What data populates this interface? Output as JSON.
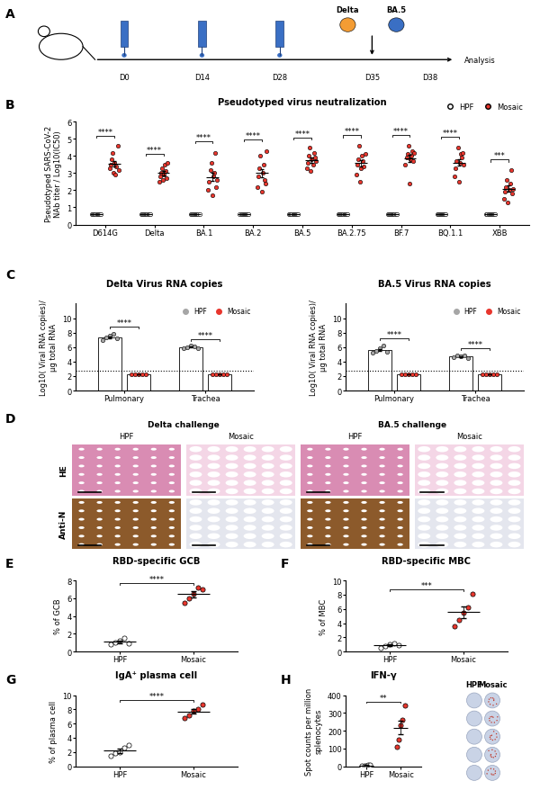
{
  "panel_labels": [
    "A",
    "B",
    "C",
    "D",
    "E",
    "F",
    "G",
    "H"
  ],
  "schedule": {
    "doses": [
      "D0",
      "D14",
      "D28"
    ],
    "challenge_day": "D35",
    "analysis_day": "D38",
    "viruses": [
      {
        "name": "Delta",
        "color": "#f39c34"
      },
      {
        "name": "BA.5",
        "color": "#3a6fc4"
      }
    ],
    "endpoint": "Analysis"
  },
  "chart_data": [
    {
      "type": "scatter",
      "title": "Pseudotyped virus neutralization",
      "ylabel": "Pseudotyped SARS-CoV-2\nNAb titer / Log10(IC50)",
      "categories": [
        "D614G",
        "Delta",
        "BA.1",
        "BA.2",
        "BA.5",
        "BA.2.75",
        "BF.7",
        "BQ.1.1",
        "XBB"
      ],
      "ylim": [
        0,
        6
      ],
      "yticks": [
        0,
        1,
        2,
        3,
        4,
        5,
        6
      ],
      "legend": "upper right",
      "significance": [
        "****",
        "****",
        "****",
        "****",
        "****",
        "****",
        "****",
        "****",
        "***"
      ],
      "series": [
        {
          "name": "HPF",
          "color": "#ffffff",
          "values": [
            [
              0.6,
              0.6,
              0.6,
              0.6,
              0.6,
              0.6,
              0.6,
              0.6,
              0.6,
              0.6
            ],
            [
              0.6,
              0.6,
              0.6,
              0.6,
              0.6,
              0.6,
              0.6,
              0.6,
              0.6,
              0.6
            ],
            [
              0.6,
              0.6,
              0.6,
              0.6,
              0.6,
              0.6,
              0.6,
              0.6,
              0.6,
              0.6
            ],
            [
              0.6,
              0.6,
              0.6,
              0.6,
              0.6,
              0.6,
              0.6,
              0.6,
              0.6,
              0.6
            ],
            [
              0.6,
              0.6,
              0.6,
              0.6,
              0.6,
              0.6,
              0.6,
              0.6,
              0.6,
              0.6
            ],
            [
              0.6,
              0.6,
              0.6,
              0.6,
              0.6,
              0.6,
              0.6,
              0.6,
              0.6,
              0.6
            ],
            [
              0.6,
              0.6,
              0.6,
              0.6,
              0.6,
              0.6,
              0.6,
              0.6,
              0.6,
              0.6
            ],
            [
              0.6,
              0.6,
              0.6,
              0.6,
              0.6,
              0.6,
              0.6,
              0.6,
              0.6,
              0.6
            ],
            [
              0.6,
              0.6,
              0.6,
              0.6,
              0.6,
              0.6,
              0.6,
              0.6,
              0.6,
              0.6
            ]
          ],
          "means": [
            0.6,
            0.6,
            0.6,
            0.6,
            0.6,
            0.6,
            0.6,
            0.6,
            0.6
          ],
          "errors": [
            0,
            0,
            0,
            0,
            0,
            0,
            0,
            0,
            0
          ]
        },
        {
          "name": "Mosaic",
          "color": "#e8362d",
          "values": [
            [
              3.3,
              3.5,
              3.8,
              4.2,
              3.0,
              3.6,
              2.9,
              3.4,
              4.6,
              3.2
            ],
            [
              2.5,
              2.8,
              3.0,
              3.3,
              2.6,
              2.9,
              3.5,
              3.1,
              2.7,
              3.6
            ],
            [
              2.0,
              2.5,
              3.2,
              3.6,
              1.7,
              2.8,
              3.0,
              4.2,
              2.2,
              2.6
            ],
            [
              2.2,
              2.8,
              3.3,
              4.0,
              1.9,
              3.0,
              3.5,
              2.6,
              2.4,
              4.3
            ],
            [
              3.3,
              3.6,
              4.0,
              4.5,
              3.1,
              3.8,
              3.5,
              4.2,
              3.9,
              3.7
            ],
            [
              2.9,
              3.5,
              3.8,
              4.6,
              2.5,
              3.3,
              4.0,
              3.7,
              3.4,
              4.1
            ],
            [
              3.5,
              3.9,
              4.1,
              4.6,
              2.4,
              3.8,
              4.0,
              4.3,
              3.7,
              4.2
            ],
            [
              2.8,
              3.3,
              3.7,
              4.5,
              2.5,
              3.6,
              4.1,
              3.9,
              4.2,
              3.5
            ],
            [
              1.5,
              1.9,
              2.2,
              2.6,
              1.3,
              2.0,
              2.4,
              3.2,
              1.8,
              2.1
            ]
          ],
          "means": [
            3.55,
            3.0,
            2.78,
            3.0,
            3.76,
            3.58,
            3.85,
            3.61,
            2.1
          ],
          "errors": [
            0.16,
            0.12,
            0.24,
            0.25,
            0.14,
            0.19,
            0.2,
            0.19,
            0.17
          ]
        }
      ]
    },
    {
      "type": "bar",
      "title": "Delta Virus RNA copies",
      "ylabel": "Log10( Viral RNA copies)/\nµg total RNA",
      "categories": [
        "Pulmonary",
        "Trachea"
      ],
      "ylim": [
        0,
        12
      ],
      "yticks": [
        0,
        2,
        4,
        6,
        8,
        10
      ],
      "reference_line": 2.8,
      "legend": "upper right",
      "significance": [
        "****",
        "****"
      ],
      "series": [
        {
          "name": "HPF",
          "color": "#a6a6a6",
          "values": [
            [
              7.0,
              7.3,
              7.6,
              7.8,
              7.2
            ],
            [
              5.8,
              6.0,
              6.2,
              6.1,
              5.9
            ]
          ],
          "means": [
            7.38,
            6.0
          ],
          "errors": [
            0.14,
            0.07
          ]
        },
        {
          "name": "Mosaic",
          "color": "#e8362d",
          "values": [
            [
              2.3,
              2.3,
              2.3,
              2.3,
              2.3
            ],
            [
              2.3,
              2.3,
              2.3,
              2.3,
              2.3
            ]
          ],
          "means": [
            2.3,
            2.3
          ],
          "errors": [
            0,
            0
          ]
        }
      ]
    },
    {
      "type": "bar",
      "title": "BA.5 Virus RNA copies",
      "ylabel": "Log10( Viral RNA copies)/\nµg total RNA",
      "categories": [
        "Pulmonary",
        "Trachea"
      ],
      "ylim": [
        0,
        12
      ],
      "yticks": [
        0,
        2,
        4,
        6,
        8,
        10
      ],
      "reference_line": 2.8,
      "legend": "upper right",
      "significance": [
        "****",
        "****"
      ],
      "series": [
        {
          "name": "HPF",
          "color": "#a6a6a6",
          "values": [
            [
              5.2,
              5.5,
              5.8,
              6.2,
              5.3
            ],
            [
              4.6,
              4.8,
              4.7,
              4.9,
              4.5
            ]
          ],
          "means": [
            5.6,
            4.7
          ],
          "errors": [
            0.18,
            0.07
          ]
        },
        {
          "name": "Mosaic",
          "color": "#e8362d",
          "values": [
            [
              2.3,
              2.3,
              2.3,
              2.3,
              2.3
            ],
            [
              2.3,
              2.3,
              2.3,
              2.3,
              2.3
            ]
          ],
          "means": [
            2.3,
            2.3
          ],
          "errors": [
            0,
            0
          ]
        }
      ]
    },
    {
      "type": "scatter",
      "title": "RBD-specific GCB",
      "ylabel": "% of GCB",
      "categories": [
        "HPF",
        "Mosaic"
      ],
      "colors": [
        "#ffffff",
        "#e8362d"
      ],
      "values": [
        [
          0.8,
          1.0,
          1.2,
          1.5,
          0.9
        ],
        [
          5.5,
          6.0,
          6.5,
          7.2,
          7.0
        ]
      ],
      "means": [
        1.08,
        6.44
      ],
      "errors": [
        0.12,
        0.32
      ],
      "ylim": [
        0,
        8
      ],
      "yticks": [
        0,
        2,
        4,
        6,
        8
      ],
      "significance": "****"
    },
    {
      "type": "scatter",
      "title": "RBD-specific MBC",
      "ylabel": "% of MBC",
      "categories": [
        "HPF",
        "Mosaic"
      ],
      "colors": [
        "#ffffff",
        "#e8362d"
      ],
      "values": [
        [
          0.5,
          0.8,
          1.0,
          1.2,
          0.9
        ],
        [
          3.5,
          4.5,
          5.5,
          6.2,
          8.1
        ]
      ],
      "means": [
        0.88,
        5.56
      ],
      "errors": [
        0.12,
        0.8
      ],
      "ylim": [
        0,
        10
      ],
      "yticks": [
        0,
        2,
        4,
        6,
        8,
        10
      ],
      "significance": "***"
    },
    {
      "type": "scatter",
      "title": "IgA⁺ plasma cell",
      "ylabel": "% of plasma cell",
      "categories": [
        "HPF",
        "Mosaic"
      ],
      "colors": [
        "#ffffff",
        "#e8362d"
      ],
      "values": [
        [
          1.5,
          1.8,
          2.0,
          2.6,
          3.0
        ],
        [
          6.8,
          7.2,
          7.8,
          8.0,
          8.7
        ]
      ],
      "means": [
        2.18,
        7.7
      ],
      "errors": [
        0.28,
        0.33
      ],
      "ylim": [
        0,
        10
      ],
      "yticks": [
        0,
        2,
        4,
        6,
        8,
        10
      ],
      "significance": "****"
    },
    {
      "type": "scatter",
      "title": "IFN-γ",
      "ylabel": "Spot counts per million\nsplenocytes",
      "categories": [
        "HPF",
        "Mosaic"
      ],
      "colors": [
        "#ffffff",
        "#e8362d"
      ],
      "values": [
        [
          2,
          4,
          5,
          6,
          8
        ],
        [
          110,
          150,
          230,
          260,
          340
        ]
      ],
      "means": [
        5,
        218
      ],
      "errors": [
        1,
        40
      ],
      "ylim": [
        0,
        400
      ],
      "yticks": [
        0,
        100,
        200,
        300,
        400
      ],
      "significance": "**"
    }
  ],
  "histology": {
    "groups": [
      {
        "title": "Delta challenge",
        "columns": [
          "HPF",
          "Mosaic"
        ]
      },
      {
        "title": "BA.5 challenge",
        "columns": [
          "HPF",
          "Mosaic"
        ]
      }
    ],
    "rows": [
      "HE",
      "Anti-N"
    ]
  },
  "elispot": {
    "columns": [
      "HPF",
      "Mosaic"
    ],
    "wells": 5
  }
}
